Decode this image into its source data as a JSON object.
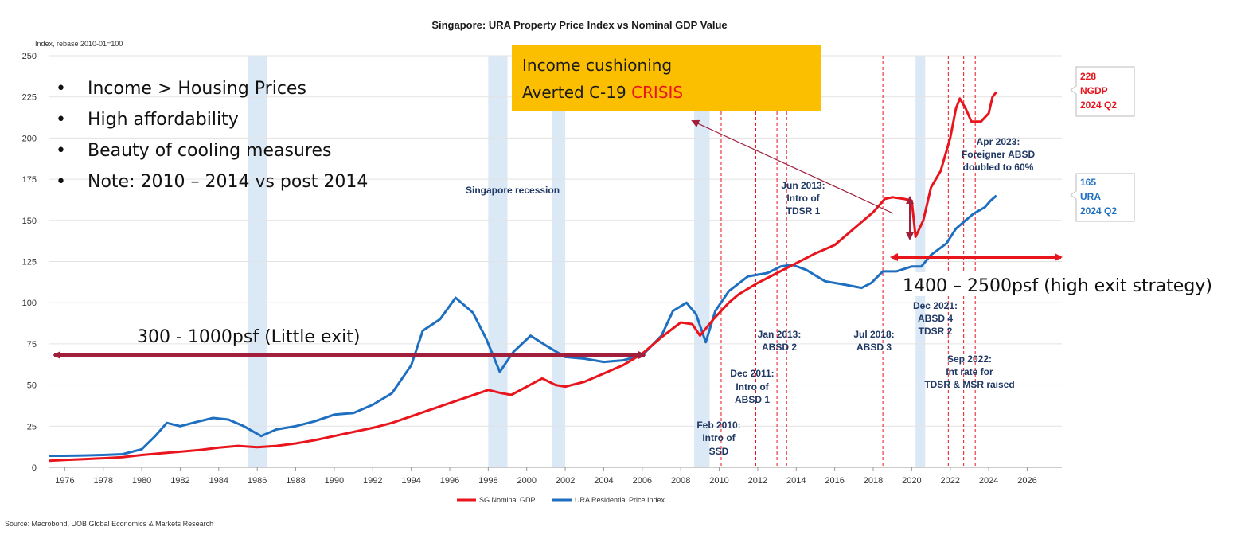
{
  "chart_data": {
    "type": "line",
    "title": "Singapore: URA Property Price Index vs Nominal GDP Value",
    "y_axis_note": "Index, rebase 2010-01=100",
    "source": "Source: Macrobond, UOB Global Economics & Markets Research",
    "xlim": [
      1975.2,
      2027.8
    ],
    "ylim": [
      0,
      250
    ],
    "x_ticks": [
      "1976",
      "1978",
      "1980",
      "1982",
      "1984",
      "1986",
      "1988",
      "1990",
      "1992",
      "1994",
      "1996",
      "1998",
      "2000",
      "2002",
      "2004",
      "2006",
      "2008",
      "2010",
      "2012",
      "2014",
      "2016",
      "2018",
      "2020",
      "2022",
      "2024",
      "2026"
    ],
    "y_ticks": [
      "0",
      "25",
      "50",
      "75",
      "100",
      "125",
      "150",
      "175",
      "200",
      "225",
      "250"
    ],
    "colors": {
      "ngdp": "#e8151d",
      "ura": "#1f6fc1",
      "recession_band": "#dbe8f5",
      "measure_line": "#e8151d",
      "arrow": "#a11e3c",
      "callout_box": "#fcbf00",
      "crisis_text": "#e8151d"
    },
    "legend": [
      "SG Nominal GDP",
      "URA Residential Price Index"
    ],
    "series": [
      {
        "name": "SG Nominal GDP",
        "points": [
          [
            1975.2,
            4
          ],
          [
            1976,
            4.5
          ],
          [
            1977,
            5
          ],
          [
            1978,
            5.5
          ],
          [
            1979,
            6.2
          ],
          [
            1980,
            7.5
          ],
          [
            1981,
            8.5
          ],
          [
            1982,
            9.5
          ],
          [
            1983,
            10.5
          ],
          [
            1984,
            12
          ],
          [
            1985,
            13
          ],
          [
            1986,
            12.2
          ],
          [
            1987,
            13
          ],
          [
            1988,
            14.5
          ],
          [
            1989,
            16.5
          ],
          [
            1990,
            19
          ],
          [
            1991,
            21.5
          ],
          [
            1992,
            24
          ],
          [
            1993,
            27
          ],
          [
            1994,
            31
          ],
          [
            1995,
            35
          ],
          [
            1996,
            39
          ],
          [
            1997,
            43
          ],
          [
            1998,
            47
          ],
          [
            1998.7,
            45
          ],
          [
            1999.2,
            44
          ],
          [
            2000,
            49
          ],
          [
            2000.8,
            54
          ],
          [
            2001.5,
            50
          ],
          [
            2002,
            49
          ],
          [
            2003,
            52
          ],
          [
            2004,
            57
          ],
          [
            2005,
            62
          ],
          [
            2006,
            69
          ],
          [
            2007,
            79
          ],
          [
            2008,
            88
          ],
          [
            2008.6,
            87
          ],
          [
            2009,
            80
          ],
          [
            2009.7,
            90
          ],
          [
            2010.5,
            100
          ],
          [
            2011,
            105
          ],
          [
            2012,
            112
          ],
          [
            2013,
            118
          ],
          [
            2014,
            124
          ],
          [
            2015,
            130
          ],
          [
            2016,
            135
          ],
          [
            2017,
            145
          ],
          [
            2018,
            155
          ],
          [
            2018.6,
            163
          ],
          [
            2019,
            164
          ],
          [
            2019.6,
            163
          ],
          [
            2020,
            162
          ],
          [
            2020.2,
            140
          ],
          [
            2020.6,
            150
          ],
          [
            2021,
            170
          ],
          [
            2021.5,
            180
          ],
          [
            2022,
            200
          ],
          [
            2022.3,
            218
          ],
          [
            2022.5,
            224
          ],
          [
            2022.8,
            218
          ],
          [
            2023.1,
            210
          ],
          [
            2023.6,
            210
          ],
          [
            2024,
            215
          ],
          [
            2024.2,
            225
          ],
          [
            2024.4,
            228
          ]
        ]
      },
      {
        "name": "URA Residential Price Index",
        "points": [
          [
            1975.2,
            7
          ],
          [
            1976,
            7
          ],
          [
            1977,
            7.2
          ],
          [
            1978,
            7.5
          ],
          [
            1979,
            8
          ],
          [
            1980,
            11
          ],
          [
            1980.7,
            19
          ],
          [
            1981.3,
            27
          ],
          [
            1982,
            25
          ],
          [
            1983,
            28
          ],
          [
            1983.7,
            30
          ],
          [
            1984.5,
            29
          ],
          [
            1985.3,
            25
          ],
          [
            1986.2,
            19
          ],
          [
            1987,
            23
          ],
          [
            1988,
            25
          ],
          [
            1989,
            28
          ],
          [
            1990,
            32
          ],
          [
            1991,
            33
          ],
          [
            1992,
            38
          ],
          [
            1993,
            45
          ],
          [
            1994,
            62
          ],
          [
            1994.6,
            83
          ],
          [
            1995.5,
            90
          ],
          [
            1996.3,
            103
          ],
          [
            1997.2,
            94
          ],
          [
            1997.9,
            78
          ],
          [
            1998.6,
            58
          ],
          [
            1999.3,
            70
          ],
          [
            2000.2,
            80
          ],
          [
            2001,
            74
          ],
          [
            2002,
            67
          ],
          [
            2003,
            66
          ],
          [
            2004,
            64
          ],
          [
            2005,
            65
          ],
          [
            2006,
            68
          ],
          [
            2007,
            80
          ],
          [
            2007.6,
            95
          ],
          [
            2008.3,
            100
          ],
          [
            2008.8,
            93
          ],
          [
            2009.3,
            76
          ],
          [
            2009.8,
            95
          ],
          [
            2010.5,
            107
          ],
          [
            2011.5,
            116
          ],
          [
            2012.5,
            118
          ],
          [
            2013.2,
            122
          ],
          [
            2013.8,
            123
          ],
          [
            2014.5,
            120
          ],
          [
            2015.5,
            113
          ],
          [
            2016.5,
            111
          ],
          [
            2017.4,
            109
          ],
          [
            2017.9,
            112
          ],
          [
            2018.5,
            119
          ],
          [
            2019.2,
            119
          ],
          [
            2020,
            122
          ],
          [
            2020.5,
            122
          ],
          [
            2021,
            129
          ],
          [
            2021.8,
            136
          ],
          [
            2022.3,
            145
          ],
          [
            2022.8,
            150
          ],
          [
            2023.2,
            154
          ],
          [
            2023.8,
            158
          ],
          [
            2024.1,
            162
          ],
          [
            2024.4,
            165
          ]
        ]
      }
    ],
    "recession_bands": [
      [
        1985.5,
        1986.5
      ],
      [
        1998,
        1999
      ],
      [
        2001.3,
        2002
      ],
      [
        2008.7,
        2009.5
      ],
      [
        2020.2,
        2020.7
      ]
    ],
    "measure_dates": [
      2010.1,
      2011.9,
      2013.0,
      2013.5,
      2018.5,
      2021.9,
      2022.7,
      2023.3
    ],
    "end_labels": [
      {
        "value": "228",
        "text1": "NGDP",
        "text2": "2024 Q2",
        "color": "#e8151d"
      },
      {
        "value": "165",
        "text1": "URA",
        "text2": "2024 Q2",
        "color": "#1f6fc1"
      }
    ],
    "annotations": {
      "recession": "Singapore recession",
      "feb2010": [
        "Feb 2010:",
        "Intro of",
        "SSD"
      ],
      "dec2011": [
        "Dec 2011:",
        "Intro of",
        "ABSD 1"
      ],
      "jan2013": [
        "Jan 2013:",
        "ABSD 2"
      ],
      "jun2013": [
        "Jun 2013:",
        "Intro of",
        "TDSR 1"
      ],
      "jul2018": [
        "Jul 2018:",
        "ABSD 3"
      ],
      "dec2021": [
        "Dec 2021:",
        "ABSD 4",
        "TDSR 2"
      ],
      "sep2022": [
        "Sep 2022:",
        "Int rate for",
        "TDSR & MSR raised"
      ],
      "apr2023": [
        "Apr 2023:",
        "Foreigner ABSD",
        "doubled to 60%"
      ]
    },
    "overlay": {
      "bullets": [
        "Income > Housing Prices",
        "High affordability",
        "Beauty of cooling measures",
        "Note: 2010 – 2014 vs post 2014"
      ],
      "callout_line1": "Income cushioning",
      "callout_line2a": "Averted C-19 ",
      "callout_line2b": "CRISIS",
      "left_range": "300 - 1000psf (Little exit)",
      "right_range": "1400 – 2500psf (high exit strategy)"
    }
  }
}
